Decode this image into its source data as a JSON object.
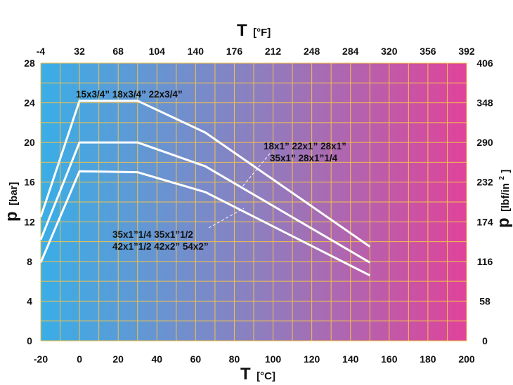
{
  "chart_data": {
    "type": "line",
    "x": [
      -20,
      0,
      30,
      65,
      150
    ],
    "series": [
      {
        "values": [
          12.5,
          24.2,
          24.2,
          21.0,
          9.5
        ]
      },
      {
        "values": [
          10.2,
          20.0,
          20.0,
          17.6,
          7.9
        ]
      },
      {
        "values": [
          7.9,
          17.1,
          17.0,
          15.0,
          6.6
        ]
      }
    ],
    "xlim": [
      -20,
      200
    ],
    "ylim": [
      0,
      28
    ],
    "x_ticks": [
      -20,
      0,
      20,
      40,
      60,
      80,
      100,
      120,
      140,
      160,
      180,
      200
    ],
    "y_ticks": [
      0,
      4,
      8,
      12,
      16,
      20,
      24,
      28
    ],
    "x_top_ticks": [
      "-4",
      "32",
      "68",
      "104",
      "140",
      "176",
      "212",
      "248",
      "284",
      "320",
      "356",
      "392"
    ],
    "y_right_ticks": [
      "0",
      "58",
      "116",
      "174",
      "232",
      "290",
      "348",
      "406"
    ],
    "xlabel": {
      "main": "T",
      "unit": "[°C]"
    },
    "x_top_label": {
      "main": "T",
      "unit": "[°F]"
    },
    "ylabel": {
      "main": "p",
      "unit": "[bar]"
    },
    "y_right_label": {
      "main": "p",
      "unit": "[lbf/in",
      "sup": "2",
      "close": "]"
    },
    "grid": true,
    "annotations": {
      "top": "15x3/4”  18x3/4”  22x3/4”",
      "middle": [
        "18x1”   22x1”   28x1”",
        "35x1”   28x1”1/4"
      ],
      "bottom": [
        "35x1”1/4   35x1”1/2",
        "42x1”1/2    42x2”   54x2”"
      ]
    },
    "colors": {
      "gradient_start": "#3aaee6",
      "gradient_mid": "#8c7fc0",
      "gradient_end": "#e0439a",
      "grid": "#f2c14a",
      "series_line": "#ffffff"
    }
  }
}
